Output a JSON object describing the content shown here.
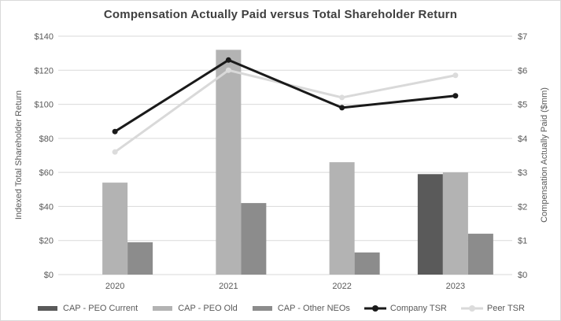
{
  "chart_data": {
    "type": "combo-bar-line",
    "title": "Compensation Actually Paid versus Total Shareholder Return",
    "categories": [
      "2020",
      "2021",
      "2022",
      "2023"
    ],
    "bar_series": [
      {
        "name": "CAP - PEO Current",
        "axis": "right",
        "color": "#5a5a5a",
        "values": [
          null,
          null,
          null,
          2.95
        ]
      },
      {
        "name": "CAP - PEO Old",
        "axis": "right",
        "color": "#b3b3b3",
        "values": [
          2.7,
          6.6,
          3.3,
          3.0
        ]
      },
      {
        "name": "CAP - Other NEOs",
        "axis": "right",
        "color": "#8c8c8c",
        "values": [
          0.95,
          2.1,
          0.65,
          1.2
        ]
      }
    ],
    "line_series": [
      {
        "name": "Company TSR",
        "axis": "left",
        "color": "#1a1a1a",
        "marker_color": "#1a1a1a",
        "values": [
          84,
          126,
          98,
          105
        ]
      },
      {
        "name": "Peer TSR",
        "axis": "left",
        "color": "#d9d9d9",
        "marker_color": "#dcdcdc",
        "values": [
          72,
          120,
          104,
          117
        ]
      }
    ],
    "left_axis": {
      "title": "Indexed Total Shareholder Return",
      "min": 0,
      "max": 140,
      "step": 20,
      "tick_labels": [
        "$0",
        "$20",
        "$40",
        "$60",
        "$80",
        "$100",
        "$120",
        "$140"
      ]
    },
    "right_axis": {
      "title": "Compensation  Actually Paid ($mm)",
      "min": 0,
      "max": 7,
      "step": 1,
      "tick_labels": [
        "$0",
        "$1",
        "$2",
        "$3",
        "$4",
        "$5",
        "$6",
        "$7"
      ]
    },
    "grid": true,
    "gridline_color": "#d9d9d9",
    "legend_position": "bottom"
  }
}
